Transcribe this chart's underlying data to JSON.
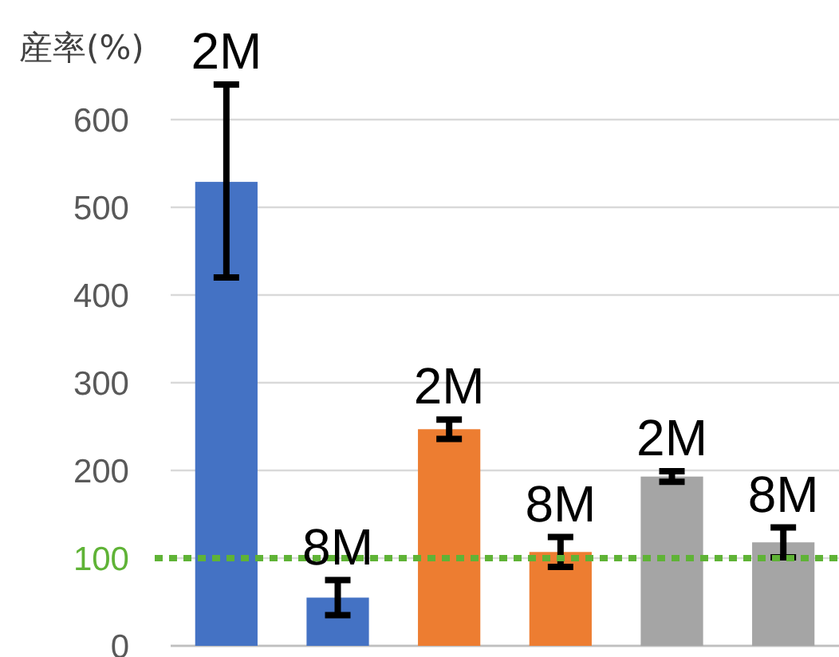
{
  "chart_data": {
    "type": "bar",
    "ylabel": "産率(%)",
    "categories": [
      "2M",
      "8M",
      "2M",
      "8M",
      "2M",
      "8M"
    ],
    "values": [
      529,
      55,
      247,
      107,
      193,
      118
    ],
    "colors": [
      "#4472c4",
      "#4472c4",
      "#ed7d31",
      "#ed7d31",
      "#a5a5a5",
      "#a5a5a5"
    ],
    "errors": [
      [
        420,
        640
      ],
      20,
      11,
      17,
      6,
      17
    ],
    "ylim": [
      0,
      600
    ],
    "yticks": [
      0,
      100,
      200,
      300,
      400,
      500,
      600
    ],
    "grid": "y",
    "ref_lines": [
      {
        "axis": "y",
        "value": 100,
        "label": null,
        "color": "#5fb336",
        "line_style": "dotted"
      }
    ]
  }
}
